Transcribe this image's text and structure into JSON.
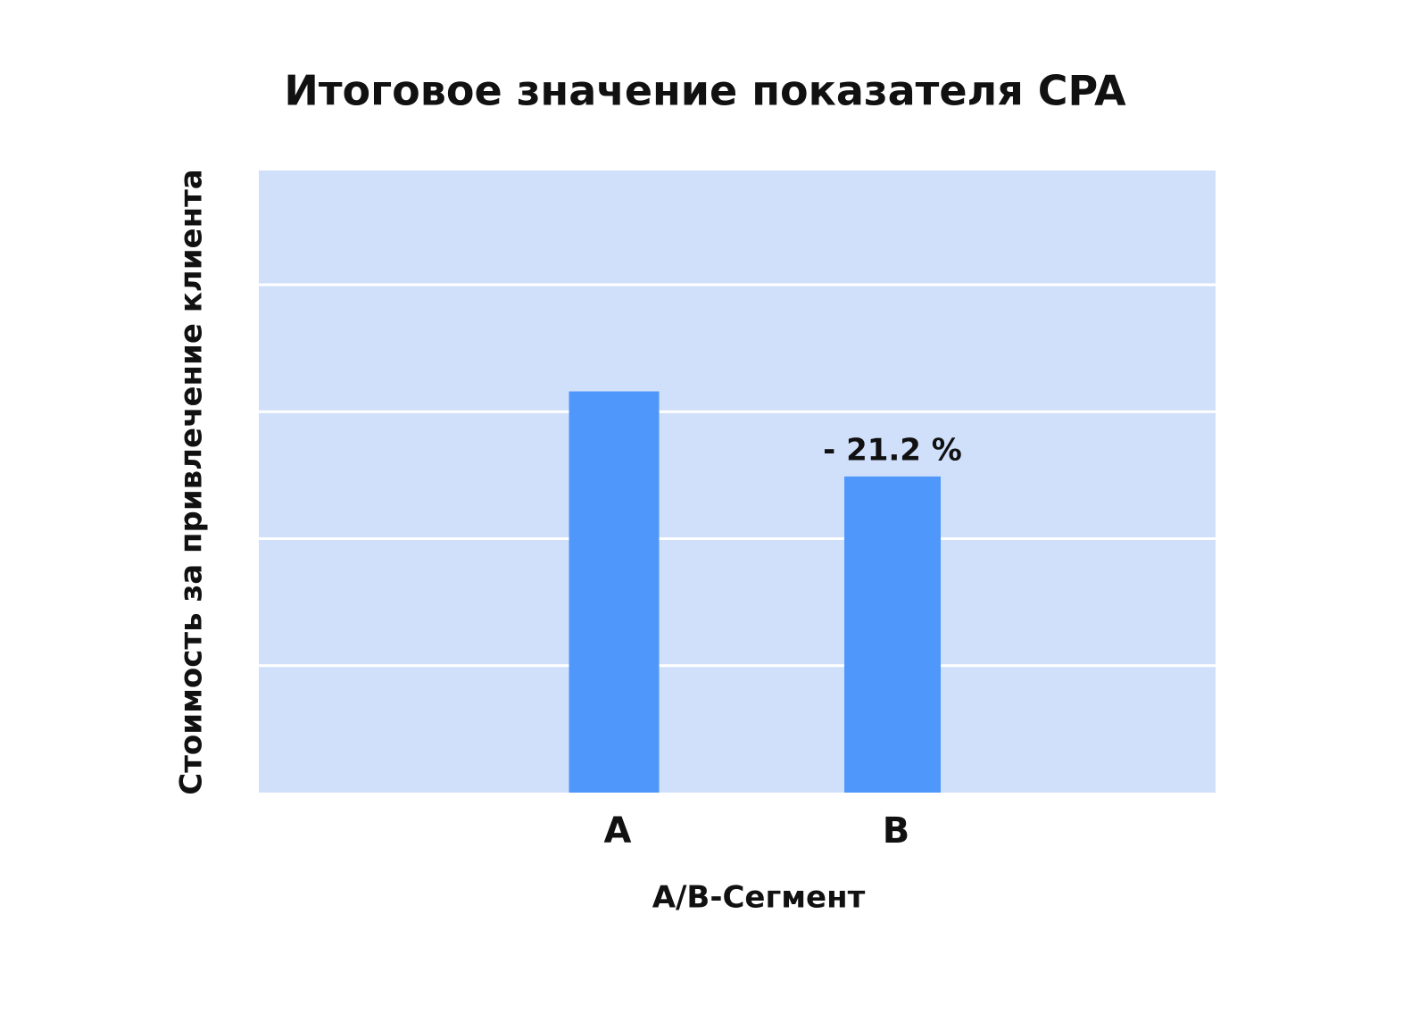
{
  "chart_data": {
    "type": "bar",
    "title": "Итоговое значение показателя CPA",
    "x_label": "A/B-Сегмент",
    "y_label": "Стоимость за привлечение клиента",
    "categories": [
      "A",
      "B"
    ],
    "values": [
      3.16,
      2.49
    ],
    "color": "#4f97fb",
    "annotation": "- 21.2 %",
    "ylim": [
      0,
      4.9
    ],
    "yticks": [
      1,
      2,
      3,
      4
    ],
    "grid": true
  }
}
